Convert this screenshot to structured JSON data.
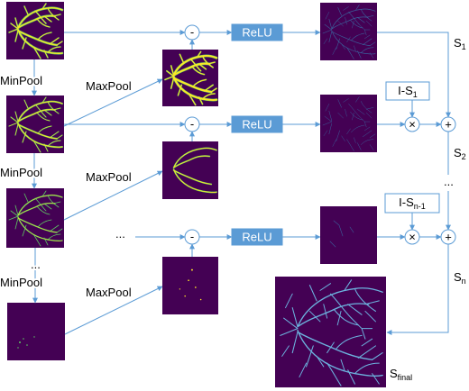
{
  "colors": {
    "connector": "#5b9bd5",
    "relu_fill": "#5b9bd5",
    "image_background": "#440154",
    "vessel_bright": "#fde725",
    "vessel_mid": "#5ec962",
    "vessel_faint": "#3b5f9a",
    "vessel_final": "#6cb3de"
  },
  "left_column": {
    "minpool_labels": [
      "MinPool",
      "MinPool",
      "MinPool"
    ],
    "ellipsis": "..."
  },
  "middle_column": {
    "maxpool_labels": [
      "MaxPool",
      "MaxPool",
      "MaxPool"
    ]
  },
  "rows": [
    {
      "subtract": "-",
      "activation": "ReLU"
    },
    {
      "subtract": "-",
      "activation": "ReLU",
      "mask": {
        "base": "I-S",
        "sub": "1"
      },
      "multiply": "×",
      "add": "+"
    },
    {
      "input_ellipsis": "...",
      "subtract": "-",
      "activation": "ReLU",
      "mask": {
        "base": "I-S",
        "sub": "n-1"
      },
      "multiply": "×",
      "add": "+"
    }
  ],
  "outputs": {
    "s1": {
      "base": "S",
      "sub": "1"
    },
    "s2": {
      "base": "S",
      "sub": "2"
    },
    "ellipsis": "...",
    "sn": {
      "base": "S",
      "sub": "n"
    },
    "final": {
      "base": "S",
      "sub": "final"
    }
  }
}
